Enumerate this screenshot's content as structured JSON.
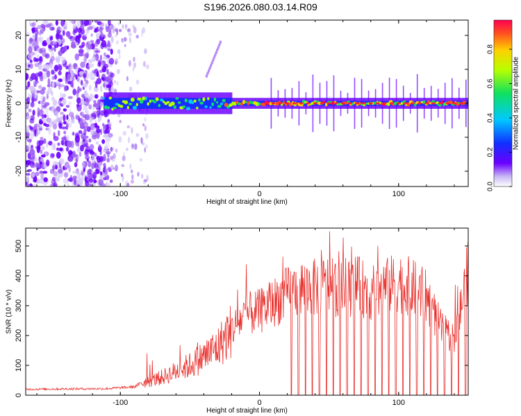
{
  "title": "S196.2026.080.03.14.R09",
  "chart_data": [
    {
      "type": "heatmap",
      "name": "spectrogram",
      "xlabel": "Height of straight line (km)",
      "ylabel": "Frequency (Hz)",
      "xlim": [
        -168,
        150
      ],
      "ylim": [
        -24.5,
        24.5
      ],
      "xticks": [
        -100,
        0,
        100
      ],
      "yticks": [
        -20,
        -10,
        0,
        10,
        20
      ],
      "colorbar": {
        "label": "Normalized spectral amplitude",
        "range": [
          0,
          0.97
        ],
        "ticks": [
          0.0,
          0.2,
          0.4,
          0.6,
          0.8
        ]
      },
      "features": {
        "dense_noise_region_x": [
          -168,
          -105
        ],
        "sparse_noise_region_x": [
          -105,
          -80
        ],
        "signal_center_freq_hz": 0,
        "rising_tone_x": [
          -38,
          -28
        ],
        "rising_tone_freq_hz": [
          8,
          18
        ]
      }
    },
    {
      "type": "line",
      "name": "snr",
      "xlabel": "Height of straight line (km)",
      "ylabel": "SNR (10 * v/v)",
      "xlim": [
        -168,
        150
      ],
      "ylim": [
        0,
        560
      ],
      "xticks": [
        -100,
        0,
        100
      ],
      "yticks": [
        0,
        100,
        200,
        300,
        400,
        500
      ],
      "color": "#e8302c",
      "series": [
        {
          "name": "SNR envelope",
          "x": [
            -168,
            -110,
            -100,
            -90,
            -85,
            -80,
            -70,
            -60,
            -50,
            -40,
            -30,
            -20,
            -10,
            0,
            10,
            20,
            30,
            40,
            50,
            60,
            70,
            80,
            90,
            100,
            110,
            120,
            130,
            140,
            145,
            150
          ],
          "y": [
            20,
            22,
            25,
            28,
            40,
            45,
            60,
            80,
            100,
            130,
            160,
            220,
            270,
            280,
            310,
            340,
            360,
            360,
            370,
            350,
            370,
            340,
            360,
            380,
            360,
            330,
            230,
            180,
            300,
            420
          ]
        }
      ],
      "dropouts_x": [
        23,
        28,
        33,
        38,
        43,
        48,
        53,
        58,
        63,
        68,
        73,
        78,
        83,
        88,
        93,
        98,
        103,
        108,
        113,
        118,
        123,
        128,
        133,
        138,
        143,
        148
      ]
    }
  ]
}
